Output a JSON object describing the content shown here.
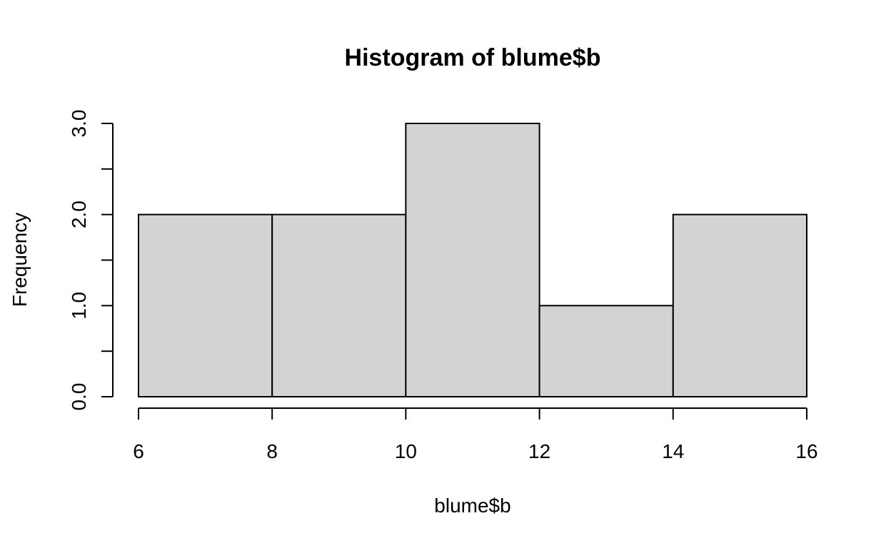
{
  "chart_data": {
    "type": "bar",
    "title": "Histogram of blume$b",
    "xlabel": "blume$b",
    "ylabel": "Frequency",
    "bins": [
      {
        "start": 6,
        "end": 8,
        "count": 2
      },
      {
        "start": 8,
        "end": 10,
        "count": 2
      },
      {
        "start": 10,
        "end": 12,
        "count": 3
      },
      {
        "start": 12,
        "end": 14,
        "count": 1
      },
      {
        "start": 14,
        "end": 16,
        "count": 2
      }
    ],
    "xlim": [
      6,
      16
    ],
    "ylim": [
      0,
      3
    ],
    "x_ticks": [
      6,
      8,
      10,
      12,
      14,
      16
    ],
    "x_tick_labels": [
      "6",
      "8",
      "10",
      "12",
      "14",
      "16"
    ],
    "y_ticks": [
      0,
      0.5,
      1,
      1.5,
      2,
      2.5,
      3
    ],
    "y_tick_labels": [
      "0.0",
      "",
      "1.0",
      "",
      "2.0",
      "",
      "3.0"
    ],
    "grid": false,
    "colors": {
      "bar_fill": "#d3d3d3",
      "bar_stroke": "#000000"
    }
  }
}
